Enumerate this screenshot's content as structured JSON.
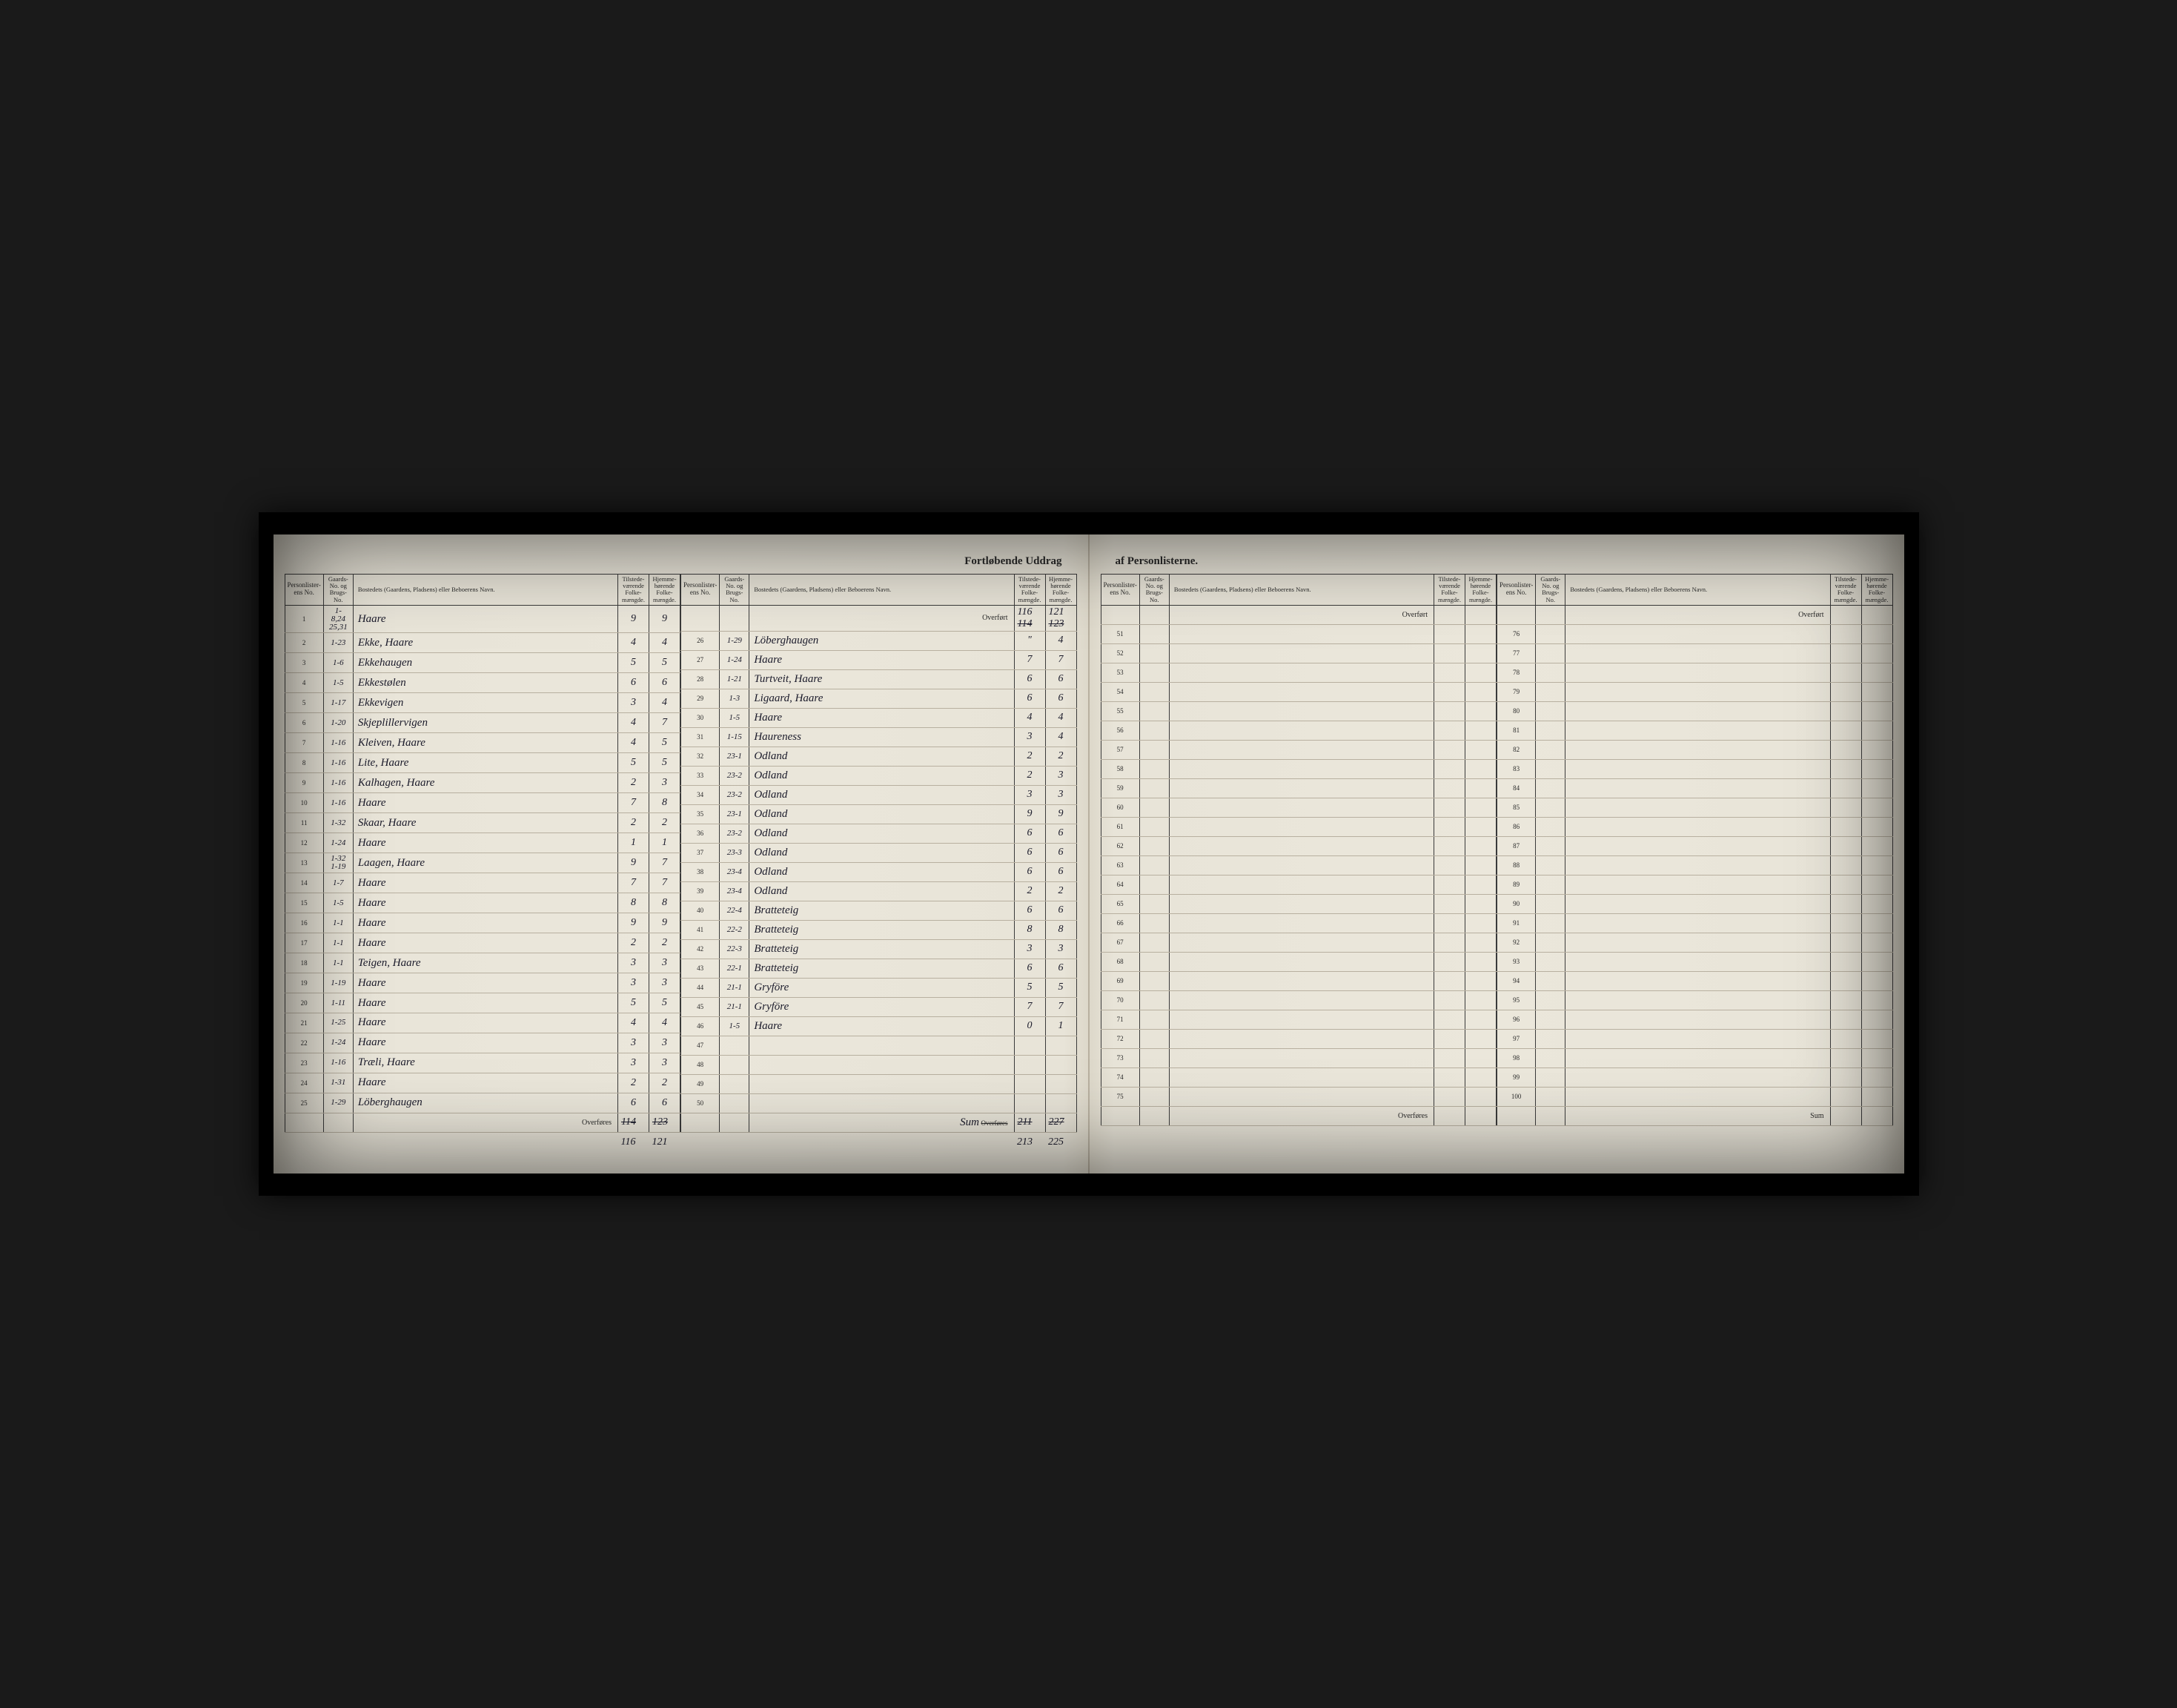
{
  "title_left": "Fortløbende Uddrag",
  "title_right": "af Personlisterne.",
  "headers": {
    "personlister": "Personlister-ens No.",
    "gaards": "Gaards-No. og Brugs-No.",
    "bosted": "Bostedets (Gaardens, Pladsens) eller Beboerens Navn.",
    "tilstede": "Tilstede-værende Folke-mængde.",
    "hjemme": "Hjemme-hørende Folke-mængde."
  },
  "overfort": "Overført",
  "overfores": "Overføres",
  "sum": "Sum",
  "overfort_vals_top": {
    "t": "116",
    "h": "121",
    "t2": "114",
    "h2": "123"
  },
  "section1": [
    {
      "n": "1",
      "g": "1-\n8,24\n25,31",
      "name": "Haare",
      "t": "9",
      "h": "9"
    },
    {
      "n": "2",
      "g": "1-23",
      "name": "Ekke, Haare",
      "t": "4",
      "h": "4"
    },
    {
      "n": "3",
      "g": "1-6",
      "name": "Ekkehaugen",
      "t": "5",
      "h": "5"
    },
    {
      "n": "4",
      "g": "1-5",
      "name": "Ekkestølen",
      "t": "6",
      "h": "6"
    },
    {
      "n": "5",
      "g": "1-17",
      "name": "Ekkevigen",
      "t": "3",
      "h": "4"
    },
    {
      "n": "6",
      "g": "1-20",
      "name": "Skjeplillervigen",
      "t": "4",
      "h": "7"
    },
    {
      "n": "7",
      "g": "1-16",
      "name": "Kleiven, Haare",
      "t": "4",
      "h": "5"
    },
    {
      "n": "8",
      "g": "1-16",
      "name": "Lite, Haare",
      "t": "5",
      "h": "5"
    },
    {
      "n": "9",
      "g": "1-16",
      "name": "Kalhagen, Haare",
      "t": "2",
      "h": "3"
    },
    {
      "n": "10",
      "g": "1-16",
      "name": "Haare",
      "t": "7",
      "h": "8"
    },
    {
      "n": "11",
      "g": "1-32",
      "name": "Skaar, Haare",
      "t": "2",
      "h": "2"
    },
    {
      "n": "12",
      "g": "1-24",
      "name": "Haare",
      "t": "1",
      "h": "1"
    },
    {
      "n": "13",
      "g": "1-32\n1-19",
      "name": "Laagen, Haare",
      "t": "9",
      "h": "7"
    },
    {
      "n": "14",
      "g": "1-7",
      "name": "Haare",
      "t": "7",
      "h": "7"
    },
    {
      "n": "15",
      "g": "1-5",
      "name": "Haare",
      "t": "8",
      "h": "8"
    },
    {
      "n": "16",
      "g": "1-1",
      "name": "Haare",
      "t": "9",
      "h": "9"
    },
    {
      "n": "17",
      "g": "1-1",
      "name": "Haare",
      "t": "2",
      "h": "2"
    },
    {
      "n": "18",
      "g": "1-1",
      "name": "Teigen, Haare",
      "t": "3",
      "h": "3"
    },
    {
      "n": "19",
      "g": "1-19",
      "name": "Haare",
      "t": "3",
      "h": "3"
    },
    {
      "n": "20",
      "g": "1-11",
      "name": "Haare",
      "t": "5",
      "h": "5"
    },
    {
      "n": "21",
      "g": "1-25",
      "name": "Haare",
      "t": "4",
      "h": "4"
    },
    {
      "n": "22",
      "g": "1-24",
      "name": "Haare",
      "t": "3",
      "h": "3"
    },
    {
      "n": "23",
      "g": "1-16",
      "name": "Træli, Haare",
      "t": "3",
      "h": "3"
    },
    {
      "n": "24",
      "g": "1-31",
      "name": "Haare",
      "t": "2",
      "h": "2"
    },
    {
      "n": "25",
      "g": "1-29",
      "name": "Löberghaugen",
      "t": "6",
      "h": "6"
    }
  ],
  "section1_foot": {
    "t": "114",
    "h": "123",
    "t2": "116",
    "h2": "121"
  },
  "section2": [
    {
      "n": "26",
      "g": "1-29",
      "name": "Löberghaugen",
      "t": "\"",
      "h": "4"
    },
    {
      "n": "27",
      "g": "1-24",
      "name": "Haare",
      "t": "7",
      "h": "7"
    },
    {
      "n": "28",
      "g": "1-21",
      "name": "Turtveit, Haare",
      "t": "6",
      "h": "6"
    },
    {
      "n": "29",
      "g": "1-3",
      "name": "Ligaard, Haare",
      "t": "6",
      "h": "6"
    },
    {
      "n": "30",
      "g": "1-5",
      "name": "Haare",
      "t": "4",
      "h": "4"
    },
    {
      "n": "31",
      "g": "1-15",
      "name": "Haureness",
      "t": "3",
      "h": "4"
    },
    {
      "n": "32",
      "g": "23-1",
      "name": "Odland",
      "t": "2",
      "h": "2"
    },
    {
      "n": "33",
      "g": "23-2",
      "name": "Odland",
      "t": "2",
      "h": "3"
    },
    {
      "n": "34",
      "g": "23-2",
      "name": "Odland",
      "t": "3",
      "h": "3"
    },
    {
      "n": "35",
      "g": "23-1",
      "name": "Odland",
      "t": "9",
      "h": "9"
    },
    {
      "n": "36",
      "g": "23-2",
      "name": "Odland",
      "t": "6",
      "h": "6"
    },
    {
      "n": "37",
      "g": "23-3",
      "name": "Odland",
      "t": "6",
      "h": "6"
    },
    {
      "n": "38",
      "g": "23-4",
      "name": "Odland",
      "t": "6",
      "h": "6"
    },
    {
      "n": "39",
      "g": "23-4",
      "name": "Odland",
      "t": "2",
      "h": "2"
    },
    {
      "n": "40",
      "g": "22-4",
      "name": "Bratteteig",
      "t": "6",
      "h": "6"
    },
    {
      "n": "41",
      "g": "22-2",
      "name": "Bratteteig",
      "t": "8",
      "h": "8"
    },
    {
      "n": "42",
      "g": "22-3",
      "name": "Bratteteig",
      "t": "3",
      "h": "3"
    },
    {
      "n": "43",
      "g": "22-1",
      "name": "Bratteteig",
      "t": "6",
      "h": "6"
    },
    {
      "n": "44",
      "g": "21-1",
      "name": "Gryföre",
      "t": "5",
      "h": "5"
    },
    {
      "n": "45",
      "g": "21-1",
      "name": "Gryföre",
      "t": "7",
      "h": "7"
    },
    {
      "n": "46",
      "g": "1-5",
      "name": "Haare",
      "t": "0",
      "h": "1"
    },
    {
      "n": "47",
      "g": "",
      "name": "",
      "t": "",
      "h": ""
    },
    {
      "n": "48",
      "g": "",
      "name": "",
      "t": "",
      "h": ""
    },
    {
      "n": "49",
      "g": "",
      "name": "",
      "t": "",
      "h": ""
    },
    {
      "n": "50",
      "g": "",
      "name": "",
      "t": "",
      "h": ""
    }
  ],
  "section2_sum": {
    "label": "Sum",
    "struck_t": "211",
    "struck_h": "227",
    "t": "213",
    "h": "225"
  },
  "section3": [
    {
      "n": "51"
    },
    {
      "n": "52"
    },
    {
      "n": "53"
    },
    {
      "n": "54"
    },
    {
      "n": "55"
    },
    {
      "n": "56"
    },
    {
      "n": "57"
    },
    {
      "n": "58"
    },
    {
      "n": "59"
    },
    {
      "n": "60"
    },
    {
      "n": "61"
    },
    {
      "n": "62"
    },
    {
      "n": "63"
    },
    {
      "n": "64"
    },
    {
      "n": "65"
    },
    {
      "n": "66"
    },
    {
      "n": "67"
    },
    {
      "n": "68"
    },
    {
      "n": "69"
    },
    {
      "n": "70"
    },
    {
      "n": "71"
    },
    {
      "n": "72"
    },
    {
      "n": "73"
    },
    {
      "n": "74"
    },
    {
      "n": "75"
    }
  ],
  "section4": [
    {
      "n": "76"
    },
    {
      "n": "77"
    },
    {
      "n": "78"
    },
    {
      "n": "79"
    },
    {
      "n": "80"
    },
    {
      "n": "81"
    },
    {
      "n": "82"
    },
    {
      "n": "83"
    },
    {
      "n": "84"
    },
    {
      "n": "85"
    },
    {
      "n": "86"
    },
    {
      "n": "87"
    },
    {
      "n": "88"
    },
    {
      "n": "89"
    },
    {
      "n": "90"
    },
    {
      "n": "91"
    },
    {
      "n": "92"
    },
    {
      "n": "93"
    },
    {
      "n": "94"
    },
    {
      "n": "95"
    },
    {
      "n": "96"
    },
    {
      "n": "97"
    },
    {
      "n": "98"
    },
    {
      "n": "99"
    },
    {
      "n": "100"
    }
  ]
}
